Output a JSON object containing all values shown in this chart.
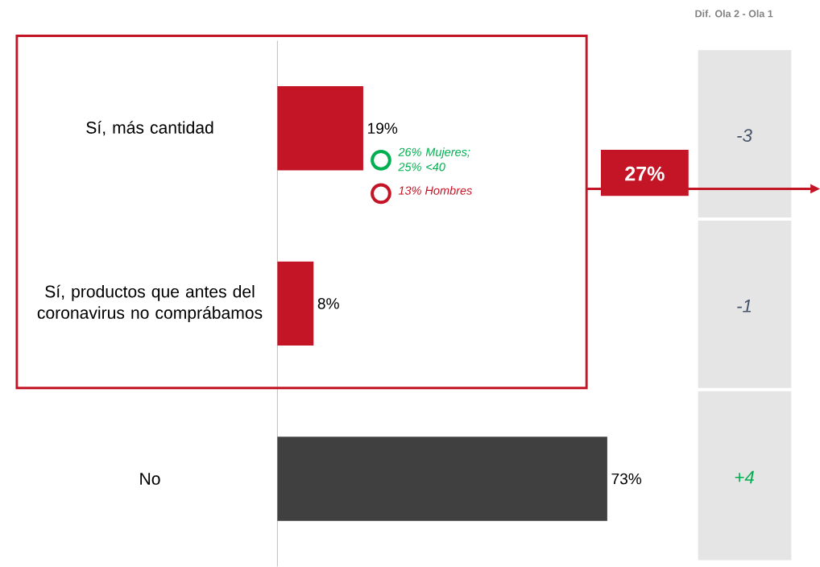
{
  "chart_data": {
    "type": "bar",
    "orientation": "horizontal",
    "categories": [
      "Sí, más cantidad",
      "Sí, productos que antes del coronavirus no comprábamos",
      "No"
    ],
    "values": [
      19,
      8,
      73
    ],
    "colors": [
      "#c41526",
      "#c41526",
      "#404040"
    ],
    "value_labels": [
      "19%",
      "8%",
      "73%"
    ],
    "annotations": [
      "Dif. Ola 2 - Ola 1",
      "-3",
      "-1",
      "+4",
      "27%",
      "26% Mujeres; 25% <40",
      "13% Hombres"
    ]
  }
}
